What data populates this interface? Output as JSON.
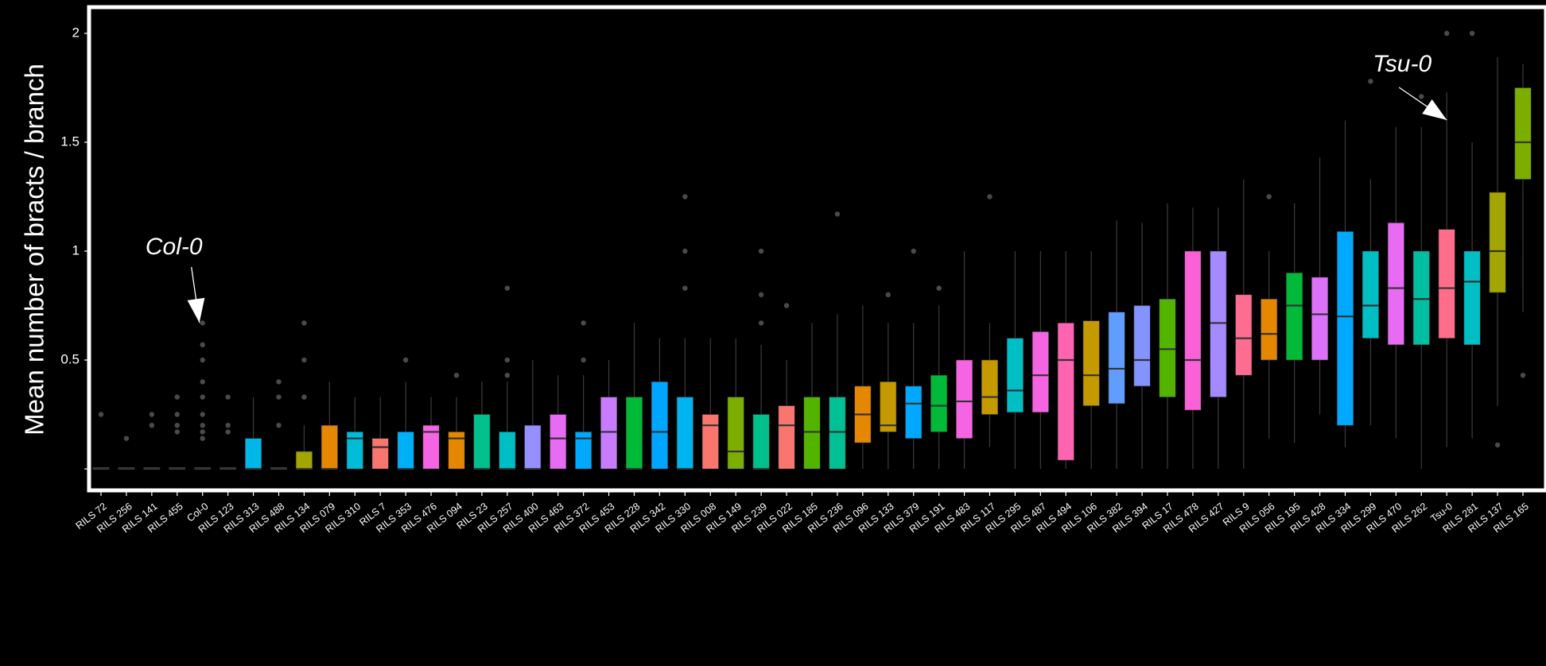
{
  "chart_data": {
    "type": "box",
    "title": "",
    "xlabel": "",
    "ylabel": "Mean number of bracts / branch",
    "ylim": [
      -0.05,
      2.1
    ],
    "yticks": [
      {
        "value": 0,
        "label": ""
      },
      {
        "value": 0.5,
        "label": "0.5"
      },
      {
        "value": 1,
        "label": "1"
      },
      {
        "value": 1.5,
        "label": "1.5"
      },
      {
        "value": 2,
        "label": "2"
      }
    ],
    "grid": false,
    "legend": "none",
    "annotations": [
      {
        "id": "col0",
        "text": "Col-0",
        "category": "Col-0",
        "target_y": 0.68
      },
      {
        "id": "tsu0",
        "text": "Tsu-0",
        "category": "Tsu-0",
        "target_y": 1.6
      }
    ],
    "boxes": [
      {
        "label": "RILS 72",
        "q1": 0,
        "median": 0,
        "q3": 0,
        "lo": 0,
        "hi": 0,
        "outliers": [
          0.25
        ],
        "color": "#e0e0e0"
      },
      {
        "label": "RILS 256",
        "q1": 0,
        "median": 0,
        "q3": 0,
        "lo": 0,
        "hi": 0,
        "outliers": [
          0.14
        ],
        "color": "#e0e0e0"
      },
      {
        "label": "RILS 141",
        "q1": 0,
        "median": 0,
        "q3": 0,
        "lo": 0,
        "hi": 0,
        "outliers": [
          0.2,
          0.25
        ],
        "color": "#e0e0e0"
      },
      {
        "label": "RILS 455",
        "q1": 0,
        "median": 0,
        "q3": 0,
        "lo": 0,
        "hi": 0,
        "outliers": [
          0.17,
          0.2,
          0.25,
          0.33
        ],
        "color": "#e0e0e0"
      },
      {
        "label": "Col-0",
        "q1": 0,
        "median": 0,
        "q3": 0,
        "lo": 0,
        "hi": 0,
        "outliers": [
          0.14,
          0.17,
          0.2,
          0.25,
          0.33,
          0.4,
          0.5,
          0.57,
          0.67
        ],
        "color": "#e0e0e0"
      },
      {
        "label": "RILS 123",
        "q1": 0,
        "median": 0,
        "q3": 0,
        "lo": 0,
        "hi": 0,
        "outliers": [
          0.17,
          0.2,
          0.33
        ],
        "color": "#e0e0e0"
      },
      {
        "label": "RILS 313",
        "q1": 0,
        "median": 0,
        "q3": 0.14,
        "lo": 0,
        "hi": 0.33,
        "outliers": [],
        "color": "#00b8e7"
      },
      {
        "label": "RILS 488",
        "q1": 0,
        "median": 0,
        "q3": 0,
        "lo": 0,
        "hi": 0,
        "outliers": [
          0.2,
          0.33,
          0.4
        ],
        "color": "#e0e0e0"
      },
      {
        "label": "RILS 134",
        "q1": 0,
        "median": 0,
        "q3": 0.08,
        "lo": 0,
        "hi": 0.2,
        "outliers": [
          0.33,
          0.5,
          0.67
        ],
        "color": "#a3a500"
      },
      {
        "label": "RILS 079",
        "q1": 0,
        "median": 0,
        "q3": 0.2,
        "lo": 0,
        "hi": 0.4,
        "outliers": [],
        "color": "#e58700"
      },
      {
        "label": "RILS 310",
        "q1": 0,
        "median": 0.14,
        "q3": 0.17,
        "lo": 0,
        "hi": 0.33,
        "outliers": [],
        "color": "#00bcd8"
      },
      {
        "label": "RILS 7",
        "q1": 0,
        "median": 0.1,
        "q3": 0.14,
        "lo": 0,
        "hi": 0.33,
        "outliers": [],
        "color": "#f8766d"
      },
      {
        "label": "RILS 353",
        "q1": 0,
        "median": 0,
        "q3": 0.17,
        "lo": 0,
        "hi": 0.4,
        "outliers": [
          0.5
        ],
        "color": "#00b0f6"
      },
      {
        "label": "RILS 476",
        "q1": 0,
        "median": 0.17,
        "q3": 0.2,
        "lo": 0,
        "hi": 0.33,
        "outliers": [],
        "color": "#f564e3"
      },
      {
        "label": "RILS 094",
        "q1": 0,
        "median": 0.14,
        "q3": 0.17,
        "lo": 0,
        "hi": 0.33,
        "outliers": [
          0.43
        ],
        "color": "#e58700"
      },
      {
        "label": "RILS 23",
        "q1": 0,
        "median": 0,
        "q3": 0.25,
        "lo": 0,
        "hi": 0.4,
        "outliers": [],
        "color": "#00c08b"
      },
      {
        "label": "RILS 257",
        "q1": 0,
        "median": 0,
        "q3": 0.17,
        "lo": 0,
        "hi": 0.4,
        "outliers": [
          0.43,
          0.5,
          0.83
        ],
        "color": "#00bfc4"
      },
      {
        "label": "RILS 400",
        "q1": 0,
        "median": 0,
        "q3": 0.2,
        "lo": 0,
        "hi": 0.5,
        "outliers": [],
        "color": "#9590ff"
      },
      {
        "label": "RILS 463",
        "q1": 0,
        "median": 0.14,
        "q3": 0.25,
        "lo": 0,
        "hi": 0.43,
        "outliers": [],
        "color": "#e76bf3"
      },
      {
        "label": "RILS 372",
        "q1": 0,
        "median": 0.14,
        "q3": 0.17,
        "lo": 0,
        "hi": 0.43,
        "outliers": [
          0.5,
          0.67
        ],
        "color": "#00a9ff"
      },
      {
        "label": "RILS 453",
        "q1": 0,
        "median": 0.17,
        "q3": 0.33,
        "lo": 0,
        "hi": 0.5,
        "outliers": [],
        "color": "#c77cff"
      },
      {
        "label": "RILS 228",
        "q1": 0,
        "median": 0,
        "q3": 0.33,
        "lo": 0,
        "hi": 0.67,
        "outliers": [],
        "color": "#00ba38"
      },
      {
        "label": "RILS 342",
        "q1": 0,
        "median": 0.17,
        "q3": 0.4,
        "lo": 0,
        "hi": 0.6,
        "outliers": [],
        "color": "#00a5ff"
      },
      {
        "label": "RILS 330",
        "q1": 0,
        "median": 0,
        "q3": 0.33,
        "lo": 0,
        "hi": 0.6,
        "outliers": [
          0.83,
          1.0,
          1.25
        ],
        "color": "#00b4ef"
      },
      {
        "label": "RILS 008",
        "q1": 0,
        "median": 0.2,
        "q3": 0.25,
        "lo": 0,
        "hi": 0.6,
        "outliers": [],
        "color": "#f8766d"
      },
      {
        "label": "RILS 149",
        "q1": 0,
        "median": 0.08,
        "q3": 0.33,
        "lo": 0,
        "hi": 0.6,
        "outliers": [],
        "color": "#7cae00"
      },
      {
        "label": "RILS 239",
        "q1": 0,
        "median": 0,
        "q3": 0.25,
        "lo": 0,
        "hi": 0.57,
        "outliers": [
          0.67,
          0.8,
          1.0
        ],
        "color": "#00c08b"
      },
      {
        "label": "RILS 022",
        "q1": 0,
        "median": 0.2,
        "q3": 0.29,
        "lo": 0,
        "hi": 0.5,
        "outliers": [
          0.75
        ],
        "color": "#f8766d"
      },
      {
        "label": "RILS 185",
        "q1": 0,
        "median": 0.17,
        "q3": 0.33,
        "lo": 0,
        "hi": 0.67,
        "outliers": [],
        "color": "#53b400"
      },
      {
        "label": "RILS 236",
        "q1": 0,
        "median": 0.17,
        "q3": 0.33,
        "lo": 0,
        "hi": 0.71,
        "outliers": [
          1.17
        ],
        "color": "#00c094"
      },
      {
        "label": "RILS 096",
        "q1": 0.12,
        "median": 0.25,
        "q3": 0.38,
        "lo": 0,
        "hi": 0.75,
        "outliers": [],
        "color": "#e58700"
      },
      {
        "label": "RILS 133",
        "q1": 0.17,
        "median": 0.2,
        "q3": 0.4,
        "lo": 0,
        "hi": 0.67,
        "outliers": [
          0.8
        ],
        "color": "#c49a00"
      },
      {
        "label": "RILS 379",
        "q1": 0.14,
        "median": 0.3,
        "q3": 0.38,
        "lo": 0,
        "hi": 0.67,
        "outliers": [
          1.0
        ],
        "color": "#00a9ff"
      },
      {
        "label": "RILS 191",
        "q1": 0.17,
        "median": 0.29,
        "q3": 0.43,
        "lo": 0,
        "hi": 0.75,
        "outliers": [
          0.83
        ],
        "color": "#00ba38"
      },
      {
        "label": "RILS 483",
        "q1": 0.14,
        "median": 0.31,
        "q3": 0.5,
        "lo": 0,
        "hi": 1.0,
        "outliers": [],
        "color": "#f564e3"
      },
      {
        "label": "RILS 117",
        "q1": 0.25,
        "median": 0.33,
        "q3": 0.5,
        "lo": 0.1,
        "hi": 0.67,
        "outliers": [
          1.25
        ],
        "color": "#c49a00"
      },
      {
        "label": "RILS 295",
        "q1": 0.26,
        "median": 0.36,
        "q3": 0.6,
        "lo": 0,
        "hi": 1.0,
        "outliers": [],
        "color": "#00bfc4"
      },
      {
        "label": "RILS 487",
        "q1": 0.26,
        "median": 0.43,
        "q3": 0.63,
        "lo": 0,
        "hi": 1.0,
        "outliers": [],
        "color": "#f564e3"
      },
      {
        "label": "RILS 494",
        "q1": 0.04,
        "median": 0.5,
        "q3": 0.67,
        "lo": 0,
        "hi": 1.0,
        "outliers": [],
        "color": "#ff64b0"
      },
      {
        "label": "RILS 106",
        "q1": 0.29,
        "median": 0.43,
        "q3": 0.68,
        "lo": 0,
        "hi": 1.0,
        "outliers": [],
        "color": "#c49a00"
      },
      {
        "label": "RILS 382",
        "q1": 0.3,
        "median": 0.46,
        "q3": 0.72,
        "lo": 0,
        "hi": 1.14,
        "outliers": [],
        "color": "#619cff"
      },
      {
        "label": "RILS 394",
        "q1": 0.38,
        "median": 0.5,
        "q3": 0.75,
        "lo": 0,
        "hi": 1.13,
        "outliers": [],
        "color": "#8494ff"
      },
      {
        "label": "RILS 17",
        "q1": 0.33,
        "median": 0.55,
        "q3": 0.78,
        "lo": 0,
        "hi": 1.22,
        "outliers": [],
        "color": "#53b400"
      },
      {
        "label": "RILS 478",
        "q1": 0.27,
        "median": 0.5,
        "q3": 1.0,
        "lo": 0,
        "hi": 1.2,
        "outliers": [],
        "color": "#fb61d7"
      },
      {
        "label": "RILS 427",
        "q1": 0.33,
        "median": 0.67,
        "q3": 1.0,
        "lo": 0,
        "hi": 1.2,
        "outliers": [],
        "color": "#a58aff"
      },
      {
        "label": "RILS 9",
        "q1": 0.43,
        "median": 0.6,
        "q3": 0.8,
        "lo": 0,
        "hi": 1.33,
        "outliers": [],
        "color": "#ff6c91"
      },
      {
        "label": "RILS 056",
        "q1": 0.5,
        "median": 0.62,
        "q3": 0.78,
        "lo": 0.14,
        "hi": 1.0,
        "outliers": [
          1.25
        ],
        "color": "#e58700"
      },
      {
        "label": "RILS 195",
        "q1": 0.5,
        "median": 0.75,
        "q3": 0.9,
        "lo": 0.12,
        "hi": 1.22,
        "outliers": [],
        "color": "#00ba38"
      },
      {
        "label": "RILS 428",
        "q1": 0.5,
        "median": 0.71,
        "q3": 0.88,
        "lo": 0.25,
        "hi": 1.43,
        "outliers": [],
        "color": "#dc71fa"
      },
      {
        "label": "RILS 334",
        "q1": 0.2,
        "median": 0.7,
        "q3": 1.09,
        "lo": 0.1,
        "hi": 1.6,
        "outliers": [],
        "color": "#00a9ff"
      },
      {
        "label": "RILS 299",
        "q1": 0.6,
        "median": 0.75,
        "q3": 1.0,
        "lo": 0.2,
        "hi": 1.33,
        "outliers": [
          1.78
        ],
        "color": "#00bfc4"
      },
      {
        "label": "RILS 470",
        "q1": 0.57,
        "median": 0.83,
        "q3": 1.13,
        "lo": 0.14,
        "hi": 1.57,
        "outliers": [],
        "color": "#e76bf3"
      },
      {
        "label": "RILS 262",
        "q1": 0.57,
        "median": 0.78,
        "q3": 1.0,
        "lo": 0,
        "hi": 1.57,
        "outliers": [
          1.71
        ],
        "color": "#00bfa0"
      },
      {
        "label": "Tsu-0",
        "q1": 0.6,
        "median": 0.83,
        "q3": 1.1,
        "lo": 0.1,
        "hi": 1.73,
        "outliers": [
          2.0
        ],
        "color": "#fe6e8a"
      },
      {
        "label": "RILS 281",
        "q1": 0.57,
        "median": 0.86,
        "q3": 1.0,
        "lo": 0.14,
        "hi": 1.5,
        "outliers": [
          2.0
        ],
        "color": "#00bfc4"
      },
      {
        "label": "RILS 137",
        "q1": 0.81,
        "median": 1.0,
        "q3": 1.27,
        "lo": 0.29,
        "hi": 1.89,
        "outliers": [
          0.11
        ],
        "color": "#a3a500"
      },
      {
        "label": "RILS 165",
        "q1": 1.33,
        "median": 1.5,
        "q3": 1.75,
        "lo": 0.72,
        "hi": 1.86,
        "outliers": [
          0.43
        ],
        "color": "#7cae00"
      }
    ]
  }
}
